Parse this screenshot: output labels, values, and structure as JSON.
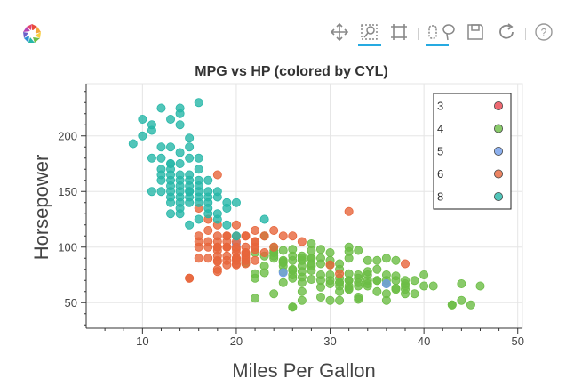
{
  "toolbar": {
    "tools": [
      "pan",
      "box-zoom",
      "wheel-zoom",
      "box-select",
      "lasso-select",
      "save",
      "reset",
      "help"
    ]
  },
  "chart_data": {
    "type": "scatter",
    "title": "MPG vs HP (colored by CYL)",
    "xlabel": "Miles Per Gallon",
    "ylabel": "Horsepower",
    "xlim": [
      4,
      50.5
    ],
    "ylim": [
      27,
      247
    ],
    "xticks": [
      10,
      20,
      30,
      40,
      50
    ],
    "yticks": [
      50,
      100,
      150,
      200
    ],
    "grid": true,
    "legend_position": "top-right",
    "series": [
      {
        "name": "3",
        "color": "#e8424e",
        "points": []
      },
      {
        "name": "4",
        "color": "#6cbd45",
        "points": [
          [
            22,
            95
          ],
          [
            24,
            95
          ],
          [
            25,
            88
          ],
          [
            26,
            46
          ],
          [
            26,
            46
          ],
          [
            27,
            90
          ],
          [
            28,
            90
          ],
          [
            31,
            65
          ],
          [
            30,
            70
          ],
          [
            27,
            88
          ],
          [
            25,
            87
          ],
          [
            24,
            90
          ],
          [
            28,
            79
          ],
          [
            26,
            92
          ],
          [
            29,
            75
          ],
          [
            32,
            65
          ],
          [
            31,
            68
          ],
          [
            33,
            53
          ],
          [
            32,
            70
          ],
          [
            28,
            90
          ],
          [
            24,
            95
          ],
          [
            25,
            83
          ],
          [
            23,
            92
          ],
          [
            31,
            52
          ],
          [
            30,
            67
          ],
          [
            36,
            58
          ],
          [
            34,
            70
          ],
          [
            33,
            75
          ],
          [
            32,
            62
          ],
          [
            44,
            52
          ],
          [
            43,
            48
          ],
          [
            36,
            75
          ],
          [
            37,
            63
          ],
          [
            35,
            88
          ],
          [
            38,
            62
          ],
          [
            40,
            65
          ],
          [
            34,
            65
          ],
          [
            31,
            85
          ],
          [
            30,
            88
          ],
          [
            27,
            92
          ],
          [
            29,
            90
          ],
          [
            32,
            90
          ],
          [
            29,
            70
          ],
          [
            27,
            60
          ],
          [
            26,
            72
          ],
          [
            24,
            97
          ],
          [
            22,
            76
          ],
          [
            25,
            86
          ],
          [
            26,
            79
          ],
          [
            27,
            68
          ],
          [
            30,
            75
          ],
          [
            32,
            70
          ],
          [
            33,
            68
          ],
          [
            34,
            88
          ],
          [
            35,
            70
          ],
          [
            36,
            67
          ],
          [
            37,
            88
          ],
          [
            38,
            65
          ],
          [
            39,
            58
          ],
          [
            40,
            75
          ],
          [
            41,
            65
          ],
          [
            44,
            67
          ],
          [
            46,
            65
          ],
          [
            43,
            48
          ],
          [
            45,
            48
          ],
          [
            32,
            100
          ],
          [
            28,
            97
          ],
          [
            25,
            97
          ],
          [
            24,
            92
          ],
          [
            31,
            60
          ],
          [
            27,
            73
          ],
          [
            26,
            80
          ],
          [
            29,
            64
          ],
          [
            33,
            65
          ],
          [
            35,
            80
          ],
          [
            36,
            90
          ],
          [
            38,
            67
          ],
          [
            34,
            78
          ],
          [
            37,
            74
          ],
          [
            25,
            78
          ],
          [
            28,
            85
          ],
          [
            30,
            95
          ],
          [
            32,
            96
          ],
          [
            26,
            98
          ],
          [
            27,
            83
          ],
          [
            31,
            68
          ],
          [
            36,
            70
          ],
          [
            33,
            72
          ],
          [
            29,
            98
          ],
          [
            23,
            110
          ],
          [
            24,
            100
          ],
          [
            28,
            103
          ],
          [
            29,
            55
          ],
          [
            27,
            52
          ],
          [
            22,
            54
          ],
          [
            23,
            83
          ],
          [
            21,
            86
          ],
          [
            22,
            72
          ],
          [
            33,
            97
          ],
          [
            35,
            70
          ],
          [
            31,
            80
          ],
          [
            30,
            84
          ],
          [
            26,
            88
          ],
          [
            29,
            85
          ],
          [
            34,
            67
          ],
          [
            37,
            70
          ],
          [
            38,
            58
          ],
          [
            39,
            70
          ],
          [
            33,
            55
          ],
          [
            36,
            52
          ],
          [
            32,
            76
          ],
          [
            30,
            52
          ],
          [
            28,
            71
          ],
          [
            27,
            78
          ],
          [
            26,
            75
          ],
          [
            24,
            58
          ],
          [
            23,
            77
          ],
          [
            25,
            68
          ],
          [
            32,
            63
          ],
          [
            34,
            75
          ],
          [
            35,
            60
          ],
          [
            38,
            70
          ],
          [
            37,
            62
          ],
          [
            31,
            72
          ],
          [
            28,
            83
          ]
        ]
      },
      {
        "name": "5",
        "color": "#6f9be8",
        "points": [
          [
            20,
            103
          ],
          [
            25,
            77
          ],
          [
            36,
            67
          ]
        ]
      },
      {
        "name": "6",
        "color": "#e7653b",
        "points": [
          [
            18,
            105
          ],
          [
            19,
            100
          ],
          [
            18,
            88
          ],
          [
            21,
            110
          ],
          [
            22,
            105
          ],
          [
            18,
            100
          ],
          [
            20,
            90
          ],
          [
            21,
            85
          ],
          [
            19,
            100
          ],
          [
            22,
            100
          ],
          [
            20,
            95
          ],
          [
            21,
            100
          ],
          [
            18,
            110
          ],
          [
            19,
            88
          ],
          [
            16,
            100
          ],
          [
            17,
            90
          ],
          [
            18,
            78
          ],
          [
            20,
            85
          ],
          [
            19,
            92
          ],
          [
            20,
            98
          ],
          [
            22,
            98
          ],
          [
            21,
            90
          ],
          [
            24,
            115
          ],
          [
            26,
            110
          ],
          [
            27,
            105
          ],
          [
            32,
            132
          ],
          [
            30,
            84
          ],
          [
            23,
            110
          ],
          [
            20,
            110
          ],
          [
            18,
            97
          ],
          [
            19,
            84
          ],
          [
            20,
            84
          ],
          [
            21,
            88
          ],
          [
            17,
            105
          ],
          [
            18,
            92
          ],
          [
            16,
            105
          ],
          [
            15,
            72
          ],
          [
            15,
            72
          ],
          [
            18,
            165
          ],
          [
            19,
            100
          ],
          [
            20,
            88
          ],
          [
            21,
            95
          ],
          [
            22,
            88
          ],
          [
            18,
            100
          ],
          [
            19,
            105
          ],
          [
            20,
            100
          ],
          [
            21,
            110
          ],
          [
            16,
            110
          ],
          [
            17,
            115
          ],
          [
            18,
            120
          ],
          [
            19,
            110
          ],
          [
            17,
            125
          ],
          [
            16,
            90
          ],
          [
            18,
            80
          ],
          [
            20,
            90
          ],
          [
            21,
            95
          ],
          [
            22,
            105
          ],
          [
            23,
            95
          ],
          [
            24,
            100
          ],
          [
            38,
            85
          ],
          [
            25,
            110
          ],
          [
            22,
            115
          ],
          [
            20,
            105
          ],
          [
            19,
            110
          ],
          [
            31,
            76
          ],
          [
            17,
            100
          ],
          [
            20,
            120
          ],
          [
            21,
            93
          ],
          [
            16,
            135
          ],
          [
            18,
            87
          ]
        ]
      },
      {
        "name": "8",
        "color": "#26b7a8",
        "points": [
          [
            9,
            193
          ],
          [
            10,
            215
          ],
          [
            10,
            200
          ],
          [
            11,
            210
          ],
          [
            11,
            180
          ],
          [
            12,
            225
          ],
          [
            12,
            165
          ],
          [
            13,
            215
          ],
          [
            13,
            175
          ],
          [
            13,
            150
          ],
          [
            14,
            225
          ],
          [
            14,
            220
          ],
          [
            14,
            175
          ],
          [
            14,
            160
          ],
          [
            13,
            140
          ],
          [
            12,
            180
          ],
          [
            14,
            145
          ],
          [
            15,
            150
          ],
          [
            15,
            198
          ],
          [
            16,
            230
          ],
          [
            15,
            190
          ],
          [
            16,
            180
          ],
          [
            14,
            210
          ],
          [
            15,
            150
          ],
          [
            16,
            170
          ],
          [
            15,
            140
          ],
          [
            17,
            150
          ],
          [
            13,
            130
          ],
          [
            13,
            165
          ],
          [
            14,
            150
          ],
          [
            12,
            160
          ],
          [
            11,
            150
          ],
          [
            14,
            135
          ],
          [
            13,
            175
          ],
          [
            15,
            180
          ],
          [
            16,
            160
          ],
          [
            17,
            140
          ],
          [
            18,
            150
          ],
          [
            16,
            145
          ],
          [
            17,
            160
          ],
          [
            18,
            125
          ],
          [
            19,
            135
          ],
          [
            20,
            140
          ],
          [
            16,
            150
          ],
          [
            15,
            145
          ],
          [
            13,
            190
          ],
          [
            14,
            185
          ],
          [
            12,
            170
          ],
          [
            11,
            205
          ],
          [
            12,
            190
          ],
          [
            13,
            160
          ],
          [
            13,
            170
          ],
          [
            14,
            165
          ],
          [
            15,
            155
          ],
          [
            16,
            155
          ],
          [
            17,
            145
          ],
          [
            18,
            130
          ],
          [
            19,
            120
          ],
          [
            20,
            110
          ],
          [
            23,
            125
          ],
          [
            14,
            130
          ],
          [
            15,
            120
          ],
          [
            16,
            125
          ],
          [
            17,
            135
          ],
          [
            18,
            145
          ],
          [
            19,
            140
          ],
          [
            14,
            140
          ],
          [
            13,
            145
          ],
          [
            12,
            150
          ],
          [
            15,
            165
          ],
          [
            16,
            140
          ],
          [
            17,
            130
          ],
          [
            13,
            155
          ],
          [
            14,
            155
          ],
          [
            15,
            160
          ]
        ]
      }
    ]
  }
}
